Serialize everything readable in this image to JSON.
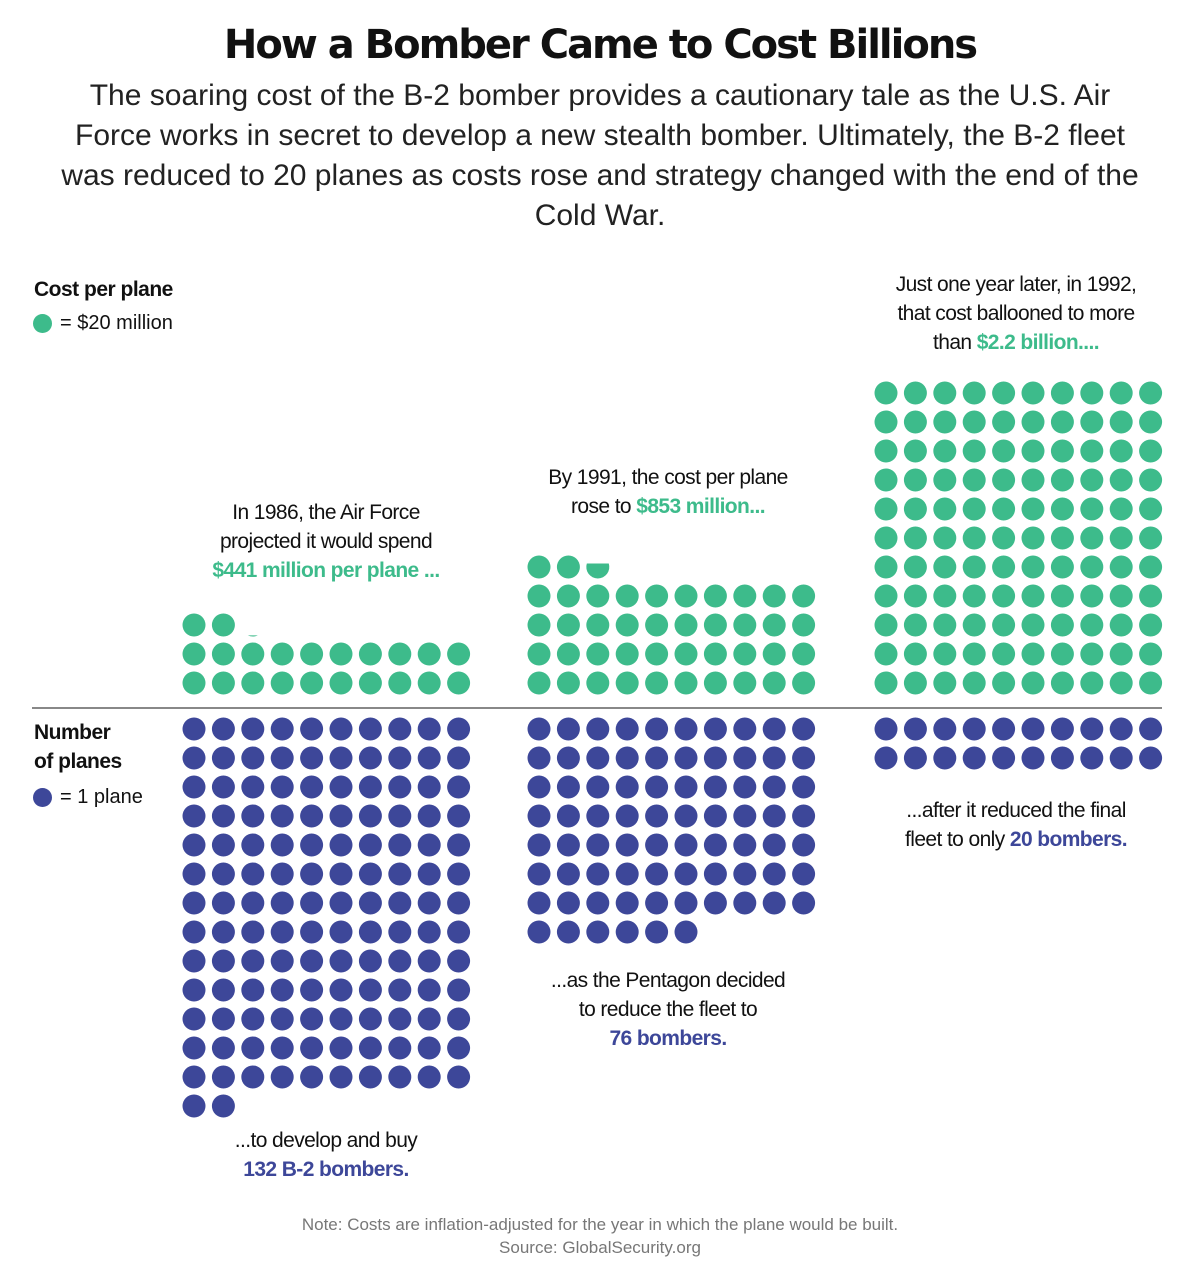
{
  "title": "How a Bomber Came to Cost Billions",
  "subtitle": "The soaring cost of the B-2 bomber provides a cautionary tale as the U.S. Air Force works in secret to develop a new stealth bomber. Ultimately, the B-2 fleet was reduced to 20 planes as costs rose and strategy changed with the end of the Cold War.",
  "colors": {
    "cost": "#3dbb8b",
    "planes": "#3d4799",
    "axis": "#888888",
    "note": "#777777"
  },
  "legend": {
    "cost": {
      "heading": "Cost per plane",
      "label": "= $20 million",
      "icon": "green-dot-icon"
    },
    "planes": {
      "heading_line1": "Number",
      "heading_line2": "of planes",
      "label": "= 1 plane",
      "icon": "blue-dot-icon"
    }
  },
  "annotations": {
    "y1986": {
      "line1": "In 1986, the Air Force",
      "line2": "projected it would spend",
      "highlight": "$441 million per plane ..."
    },
    "y1991": {
      "line1": "By 1991, the cost per plane",
      "line2": "rose to ",
      "highlight": "$853 million..."
    },
    "y1992": {
      "line1": "Just one year later, in 1992,",
      "line2": "that cost ballooned to more",
      "line3": "than ",
      "highlight": "$2.2 billion...."
    },
    "p1986": {
      "line1": "...to develop and buy",
      "highlight": "132 B-2 bombers."
    },
    "p1991": {
      "line1": "...as the Pentagon decided",
      "line2": "to reduce the fleet to",
      "highlight": "76 bombers."
    },
    "p1992": {
      "line1": "...after it reduced the final",
      "line2": "fleet to only ",
      "highlight": "20 bombers."
    }
  },
  "note": "Note: Costs are inflation-adjusted for the year in which the plane would be built.",
  "source": "Source: GlobalSecurity.org",
  "chart_data": {
    "type": "pictogram",
    "units": {
      "cost_per_dot_million_usd": 20,
      "planes_per_dot": 1
    },
    "categories": [
      "1986",
      "1991",
      "1992"
    ],
    "series": [
      {
        "name": "Cost per plane",
        "unit": "million USD",
        "values": [
          441,
          853,
          2200
        ]
      },
      {
        "name": "Number of planes",
        "values": [
          132,
          76,
          20
        ]
      }
    ],
    "dots_per_row": 10
  }
}
